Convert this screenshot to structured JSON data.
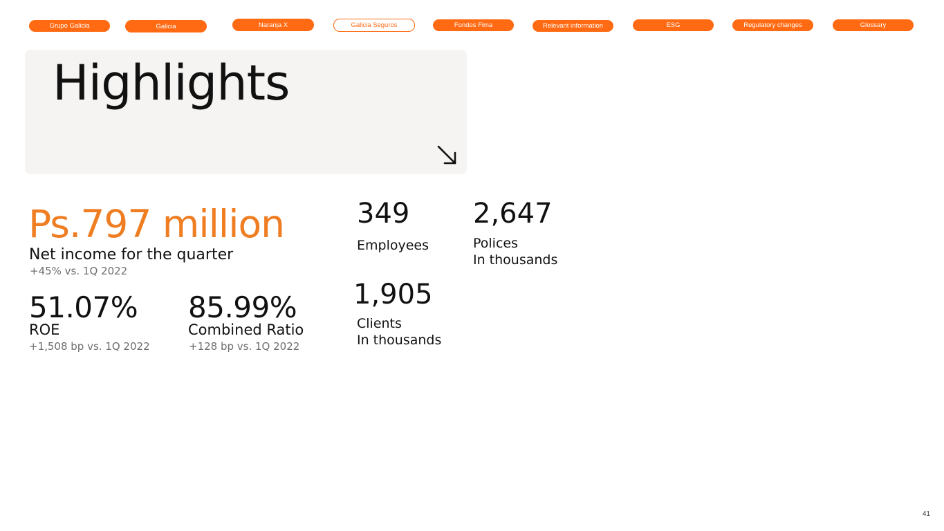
{
  "nav": {
    "tabs": [
      {
        "label": "Grupo Galicia"
      },
      {
        "label": "Galicia"
      },
      {
        "label": "Naranja X"
      },
      {
        "label": "Galicia Seguros",
        "active": true
      },
      {
        "label": "Fondos Fima"
      },
      {
        "label": "Relevant information"
      },
      {
        "label": "ESG"
      },
      {
        "label": "Regulatory changes"
      },
      {
        "label": "Glossary"
      }
    ]
  },
  "hero": {
    "title": "Highlights",
    "arrow_icon": "arrow-down-right-icon"
  },
  "net_income": {
    "value": "Ps.797 million",
    "label": "Net income for the quarter",
    "change": "+45% vs. 1Q 2022"
  },
  "roe": {
    "value": "51.07%",
    "label": "ROE",
    "change": "+1,508 bp vs. 1Q 2022"
  },
  "combined_ratio": {
    "value": "85.99%",
    "label": "Combined Ratio",
    "change": "+128 bp vs. 1Q 2022"
  },
  "employees": {
    "value": "349",
    "label": "Employees"
  },
  "polices": {
    "value": "2,647",
    "label": "Polices",
    "unit": "In thousands"
  },
  "clients": {
    "value": "1,905",
    "label": "Clients",
    "unit": "In thousands"
  },
  "page_number": "41",
  "colors": {
    "accent": "#ff6a13",
    "highlight_text": "#ef7d22",
    "hero_bg": "#f5f4f3"
  }
}
